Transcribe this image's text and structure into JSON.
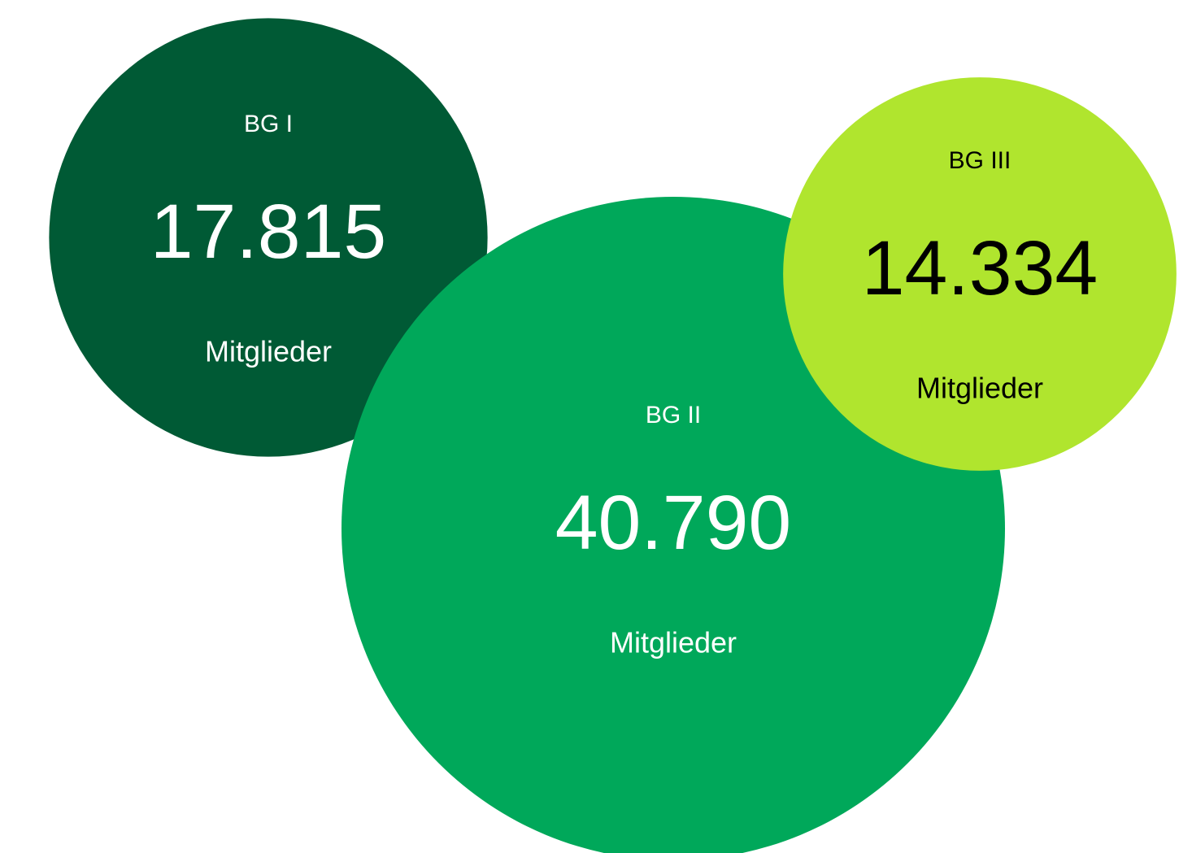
{
  "chart_data": {
    "type": "bubble",
    "categories": [
      "BG I",
      "BG II",
      "BG III"
    ],
    "values": [
      17815,
      40790,
      14334
    ],
    "value_labels": [
      "17.815",
      "40.790",
      "14.334"
    ],
    "unit": "Mitglieder",
    "colors": [
      "#005a35",
      "#00a85a",
      "#b0e52e"
    ],
    "label_colors": [
      "#ffffff",
      "#ffffff",
      "#000000"
    ]
  }
}
